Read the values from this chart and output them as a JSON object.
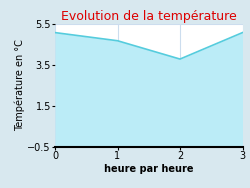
{
  "title": "Evolution de la température",
  "xlabel": "heure par heure",
  "ylabel": "Température en °C",
  "x": [
    0,
    1,
    2,
    3
  ],
  "y": [
    5.1,
    4.7,
    3.8,
    5.1
  ],
  "xlim": [
    0,
    3
  ],
  "ylim": [
    -0.5,
    5.5
  ],
  "yticks": [
    -0.5,
    1.5,
    3.5,
    5.5
  ],
  "xticks": [
    0,
    1,
    2,
    3
  ],
  "line_color": "#55ccdd",
  "fill_color": "#bbecf7",
  "plot_bg_color": "#ffffff",
  "outer_bg_color": "#d8e8ef",
  "title_color": "#dd0000",
  "title_fontsize": 9,
  "axis_label_fontsize": 7,
  "tick_fontsize": 7,
  "grid_color": "#ccddee",
  "line_width": 1.2
}
